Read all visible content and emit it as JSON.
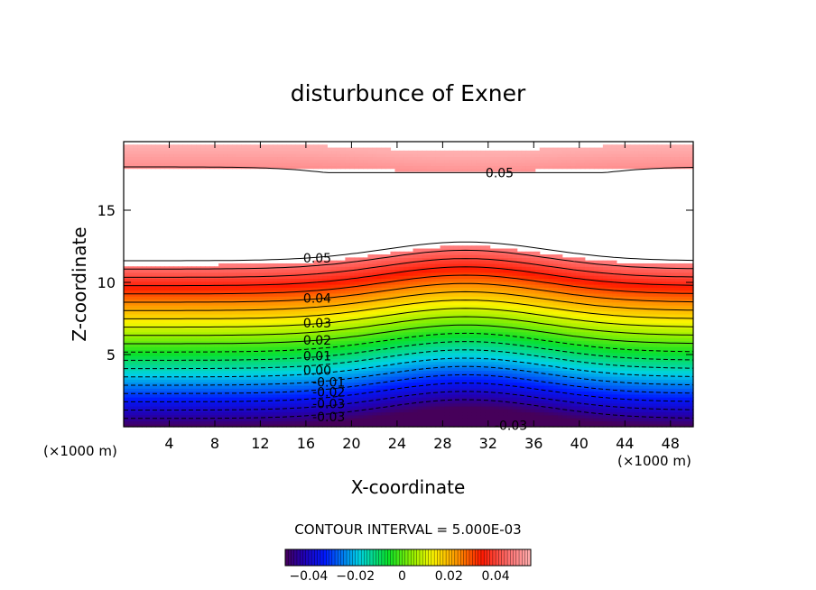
{
  "chart_data": {
    "type": "contour",
    "title": "disturbunce of Exner",
    "xlabel": "X-coordinate",
    "ylabel": "Z-coordinate",
    "x_unit": "(×1000 m)",
    "x_unit_right": "(×1000 m)",
    "xlim": [
      0,
      50
    ],
    "ylim": [
      0,
      19.75
    ],
    "xticks": [
      4,
      8,
      12,
      16,
      20,
      24,
      28,
      32,
      36,
      40,
      44,
      48
    ],
    "yticks": [
      5,
      10,
      15
    ],
    "contour_interval_text": "CONTOUR INTERVAL = 5.000E-03",
    "contour_labels": [
      {
        "text": "0.05",
        "x": 33,
        "z": 17.6
      },
      {
        "text": "0.05",
        "x": 17,
        "z": 11.7
      },
      {
        "text": "0.04",
        "x": 17,
        "z": 8.9
      },
      {
        "text": "0.03",
        "x": 17,
        "z": 7.2
      },
      {
        "text": "0.02",
        "x": 17,
        "z": 6.0
      },
      {
        "text": "0.01",
        "x": 17,
        "z": 4.9
      },
      {
        "text": "0.00",
        "x": 17,
        "z": 3.9
      },
      {
        "text": "-0.01",
        "x": 18,
        "z": 3.1
      },
      {
        "text": "-0.02",
        "x": 18,
        "z": 2.4
      },
      {
        "text": "-0.03",
        "x": 18,
        "z": 1.6
      },
      {
        "text": "-0.03",
        "x": 18,
        "z": 0.7
      },
      {
        "text": "-0.03",
        "x": 34,
        "z": 0.1
      }
    ],
    "level_range": [
      -0.05,
      0.055
    ],
    "colorbar": {
      "min": -0.05,
      "max": 0.055,
      "ticks": [
        {
          "value": -0.04,
          "label": "−0.04"
        },
        {
          "value": -0.02,
          "label": "−0.02"
        },
        {
          "value": 0,
          "label": "0"
        },
        {
          "value": 0.02,
          "label": "0.02"
        },
        {
          "value": 0.04,
          "label": "0.04"
        }
      ]
    }
  }
}
